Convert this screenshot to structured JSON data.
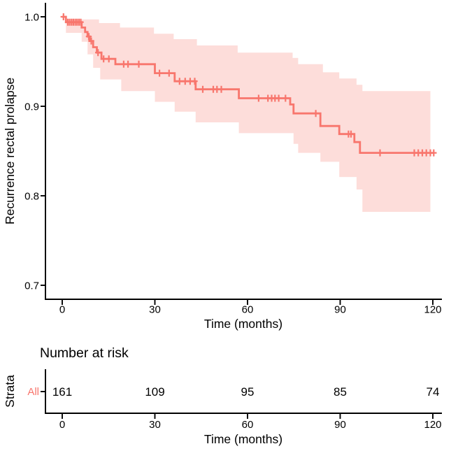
{
  "main": {
    "ylabel": "Recurrence rectal prolapse",
    "xlabel": "Time (months)",
    "ytick_labels": [
      "1.0",
      "0.9",
      "0.8",
      "0.7"
    ],
    "xtick_labels": [
      "0",
      "30",
      "60",
      "90",
      "120"
    ]
  },
  "risk_table": {
    "title": "Number at risk",
    "strata_axis_label": "Strata",
    "row_label": "All",
    "values": [
      "161",
      "109",
      "95",
      "85",
      "74"
    ],
    "xlabel": "Time (months)",
    "xtick_labels": [
      "0",
      "30",
      "60",
      "90",
      "120"
    ]
  },
  "colors": {
    "strata": "#F8766D",
    "ci_band": "#F8766D",
    "ci_band_opacity": 0.25,
    "axis": "#000000"
  },
  "chart_data": {
    "type": "line",
    "subtype": "kaplan-meier-step",
    "title": "",
    "xlabel": "Time (months)",
    "ylabel": "Recurrence rectal prolapse",
    "xlim": [
      -5.5,
      123
    ],
    "ylim": [
      0.684,
      1.016
    ],
    "xticks": [
      0,
      30,
      60,
      90,
      120
    ],
    "yticks": [
      1.0,
      0.9,
      0.8,
      0.7
    ],
    "grid": false,
    "legend": "none",
    "series": [
      {
        "name": "All",
        "color": "#F8766D",
        "step_times": [
          0,
          1.2,
          6.3,
          7.4,
          8.2,
          8.9,
          10.0,
          11.2,
          12.7,
          17.2,
          30.0,
          36.4,
          43.2,
          57.2,
          73.8,
          74.9,
          83.6,
          89.7,
          94.6,
          96.4
        ],
        "step_surv": [
          1.0,
          0.994,
          0.988,
          0.983,
          0.978,
          0.973,
          0.966,
          0.96,
          0.953,
          0.947,
          0.937,
          0.928,
          0.919,
          0.909,
          0.902,
          0.892,
          0.878,
          0.869,
          0.86,
          0.848
        ],
        "end_time": 120.3,
        "censor_times": [
          0.4,
          1.8,
          2.4,
          3.0,
          3.6,
          4.2,
          4.8,
          5.4,
          6.0,
          8.6,
          9.4,
          11.6,
          13.4,
          15.1,
          19.9,
          21.3,
          24.8,
          31.5,
          34.6,
          38.0,
          39.8,
          41.4,
          42.9,
          45.5,
          48.9,
          50.1,
          51.5,
          63.6,
          66.6,
          67.8,
          68.9,
          70.1,
          72.3,
          82.1,
          92.7,
          93.5,
          102.9,
          114.0,
          115.3,
          116.6,
          117.9,
          119.2,
          120.3
        ],
        "censor_surv": [
          1.0,
          0.994,
          0.994,
          0.994,
          0.994,
          0.994,
          0.994,
          0.994,
          0.994,
          0.978,
          0.973,
          0.96,
          0.953,
          0.953,
          0.947,
          0.947,
          0.947,
          0.937,
          0.937,
          0.928,
          0.928,
          0.928,
          0.928,
          0.919,
          0.919,
          0.919,
          0.919,
          0.909,
          0.909,
          0.909,
          0.909,
          0.909,
          0.909,
          0.892,
          0.869,
          0.869,
          0.848,
          0.848,
          0.848,
          0.848,
          0.848,
          0.848,
          0.848
        ],
        "ci_upper": {
          "times": [
            1.2,
            11.9,
            18.7,
            29.7,
            36.1,
            43.6,
            56.8,
            74.6,
            76.4,
            84.4,
            89.7,
            95.3,
            97.2
          ],
          "values": [
            0.997,
            0.993,
            0.988,
            0.981,
            0.975,
            0.968,
            0.96,
            0.954,
            0.947,
            0.938,
            0.931,
            0.924,
            0.917
          ],
          "end_time": 119.2
        },
        "ci_lower": {
          "times": [
            1.2,
            6.3,
            8.2,
            10.0,
            12.3,
            19.1,
            30.0,
            36.4,
            43.2,
            57.2,
            74.9,
            76.4,
            83.6,
            89.7,
            95.3,
            97.2
          ],
          "values": [
            0.982,
            0.972,
            0.958,
            0.943,
            0.93,
            0.917,
            0.905,
            0.894,
            0.882,
            0.87,
            0.858,
            0.848,
            0.838,
            0.821,
            0.807,
            0.782
          ],
          "end_time": 119.2
        }
      }
    ],
    "risk_table": {
      "title": "Number at risk",
      "rows": [
        {
          "label": "All",
          "times": [
            0,
            30,
            60,
            90,
            120
          ],
          "n_risk": [
            161,
            109,
            95,
            85,
            74
          ]
        }
      ]
    }
  }
}
